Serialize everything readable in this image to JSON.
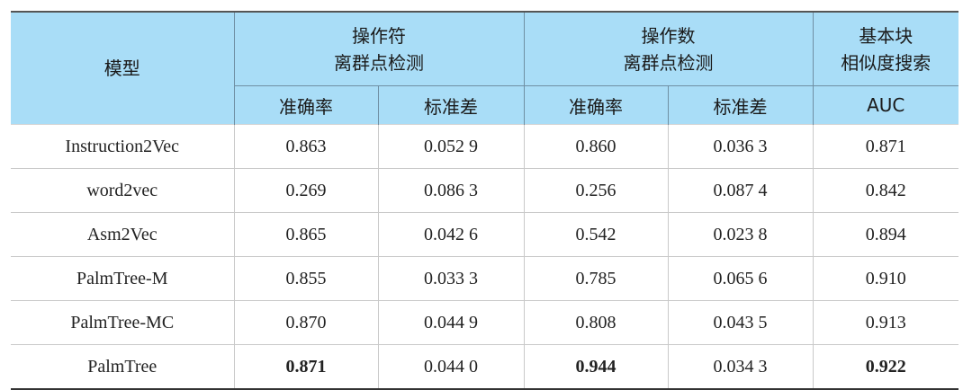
{
  "table": {
    "model_header": "模型",
    "groups": [
      {
        "lines": [
          "操作符",
          "离群点检测"
        ],
        "span": 2
      },
      {
        "lines": [
          "操作数",
          "离群点检测"
        ],
        "span": 2
      },
      {
        "lines": [
          "基本块",
          "相似度搜索"
        ],
        "span": 1
      }
    ],
    "subheaders": [
      "准确率",
      "标准差",
      "准确率",
      "标准差",
      "AUC"
    ],
    "rows": [
      [
        "Instruction2Vec",
        "0.863",
        "0.052 9",
        "0.860",
        "0.036 3",
        "0.871"
      ],
      [
        "word2vec",
        "0.269",
        "0.086 3",
        "0.256",
        "0.087 4",
        "0.842"
      ],
      [
        "Asm2Vec",
        "0.865",
        "0.042 6",
        "0.542",
        "0.023 8",
        "0.894"
      ],
      [
        "PalmTree-M",
        "0.855",
        "0.033 3",
        "0.785",
        "0.065 6",
        "0.910"
      ],
      [
        "PalmTree-MC",
        "0.870",
        "0.044 9",
        "0.808",
        "0.043 5",
        "0.913"
      ],
      [
        "PalmTree",
        "0.871",
        "0.044 0",
        "0.944",
        "0.034 3",
        "0.922"
      ]
    ],
    "bold": [
      [
        5,
        1
      ],
      [
        5,
        3
      ],
      [
        5,
        5
      ]
    ]
  }
}
